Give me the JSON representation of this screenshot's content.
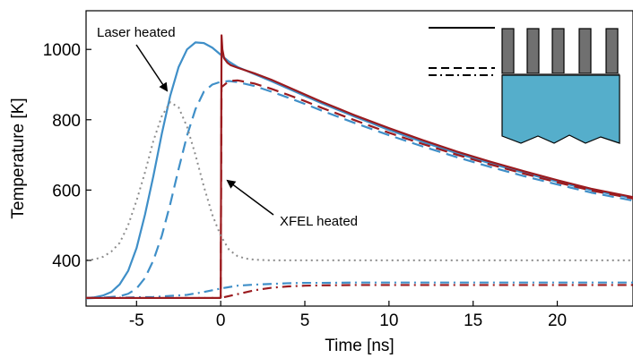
{
  "chart_data": {
    "type": "line",
    "xlabel": "Time [ns]",
    "ylabel": "Temperature [K]",
    "xlim": [
      -8,
      24.5
    ],
    "ylim": [
      270,
      1110
    ],
    "xticks": [
      -5,
      0,
      5,
      10,
      15,
      20
    ],
    "yticks": [
      400,
      600,
      800,
      1000
    ],
    "xtick_labels": [
      "-5",
      "0",
      "5",
      "10",
      "15",
      "20"
    ],
    "ytick_labels": [
      "400",
      "600",
      "800",
      "1000"
    ],
    "grid": false,
    "colors": {
      "laser": "#3f8fc8",
      "xfel": "#9b1b1f",
      "pulse": "#8c8c8c"
    },
    "series": [
      {
        "color": "#3f8fc8",
        "style": "solid",
        "x": [
          -8,
          -7.5,
          -7,
          -6.5,
          -6,
          -5.5,
          -5,
          -4.5,
          -4,
          -3.5,
          -3,
          -2.5,
          -2,
          -1.5,
          -1,
          -0.5,
          0,
          0.5,
          1,
          2,
          3,
          4,
          5,
          6,
          8,
          10,
          12,
          14,
          16,
          18,
          20,
          22,
          24.5
        ],
        "y": [
          293,
          295,
          300,
          310,
          332,
          370,
          435,
          530,
          640,
          760,
          868,
          950,
          1000,
          1020,
          1018,
          1005,
          985,
          965,
          950,
          930,
          910,
          889,
          868,
          847,
          808,
          771,
          737,
          705,
          676,
          649,
          624,
          600,
          577
        ]
      },
      {
        "color": "#3f8fc8",
        "style": "dashed",
        "x": [
          -8,
          -7,
          -6,
          -5.5,
          -5,
          -4.5,
          -4,
          -3.5,
          -3,
          -2.5,
          -2,
          -1.5,
          -1,
          -0.5,
          0,
          0.5,
          1,
          2,
          3,
          4,
          5,
          6,
          8,
          10,
          12,
          14,
          16,
          18,
          20,
          22,
          24.5
        ],
        "y": [
          292,
          294,
          298,
          305,
          320,
          350,
          400,
          470,
          560,
          660,
          755,
          830,
          880,
          900,
          908,
          910,
          907,
          896,
          880,
          863,
          845,
          826,
          790,
          756,
          724,
          694,
          666,
          640,
          616,
          593,
          570
        ]
      },
      {
        "color": "#3f8fc8",
        "style": "dashdot",
        "x": [
          -8,
          -6,
          -4,
          -2,
          -1,
          0,
          1,
          2,
          3,
          4,
          5,
          6,
          8,
          10,
          12,
          15,
          20,
          24.5
        ],
        "y": [
          293,
          294,
          296,
          302,
          310,
          320,
          328,
          331,
          333,
          335,
          336,
          336,
          337,
          337,
          337,
          337,
          337,
          337
        ]
      },
      {
        "color": "#9b1b1f",
        "style": "solid",
        "x": [
          -8,
          -4,
          -1,
          -0.05,
          0,
          0.05,
          0.1,
          0.2,
          0.4,
          0.6,
          1,
          2,
          3,
          4,
          5,
          6,
          8,
          10,
          12,
          14,
          16,
          18,
          20,
          22,
          24.5
        ],
        "y": [
          293,
          293,
          293,
          293,
          294,
          1040,
          1000,
          975,
          962,
          955,
          948,
          932,
          914,
          893,
          872,
          851,
          812,
          776,
          742,
          710,
          681,
          654,
          628,
          604,
          580
        ]
      },
      {
        "color": "#9b1b1f",
        "style": "dashed",
        "x": [
          -8,
          -4,
          -1,
          -0.05,
          0,
          0.05,
          0.5,
          1,
          2,
          3,
          4,
          5,
          6,
          8,
          10,
          12,
          14,
          16,
          18,
          20,
          22,
          24.5
        ],
        "y": [
          293,
          293,
          293,
          293,
          294,
          893,
          910,
          912,
          903,
          888,
          871,
          853,
          834,
          798,
          763,
          731,
          701,
          673,
          647,
          622,
          599,
          576
        ]
      },
      {
        "color": "#9b1b1f",
        "style": "dashdot",
        "x": [
          -8,
          -4,
          -1,
          0,
          1,
          2,
          3,
          4,
          5,
          6,
          8,
          10,
          12,
          15,
          20,
          24.5
        ],
        "y": [
          293,
          293,
          293,
          293,
          304,
          315,
          322,
          326,
          328,
          329,
          330,
          330,
          330,
          330,
          330,
          330
        ]
      },
      {
        "color": "#8c8c8c",
        "style": "dotted",
        "x": [
          -8,
          -7.5,
          -7,
          -6.5,
          -6,
          -5.5,
          -5,
          -4.5,
          -4,
          -3.5,
          -3,
          -2.5,
          -2,
          -1.5,
          -1,
          -0.5,
          0,
          0.5,
          1,
          1.5,
          2,
          3,
          4,
          6,
          10,
          15,
          20,
          24.5
        ],
        "y": [
          400,
          403,
          410,
          425,
          450,
          500,
          570,
          650,
          740,
          810,
          850,
          835,
          780,
          700,
          610,
          530,
          470,
          430,
          412,
          405,
          402,
          400,
          400,
          400,
          400,
          400,
          400,
          400
        ]
      }
    ],
    "annotations": [
      {
        "text": "Laser heated",
        "x": -3.2,
        "y": 870
      },
      {
        "text": "XFEL heated",
        "x": 0.5,
        "y": 670
      }
    ]
  }
}
